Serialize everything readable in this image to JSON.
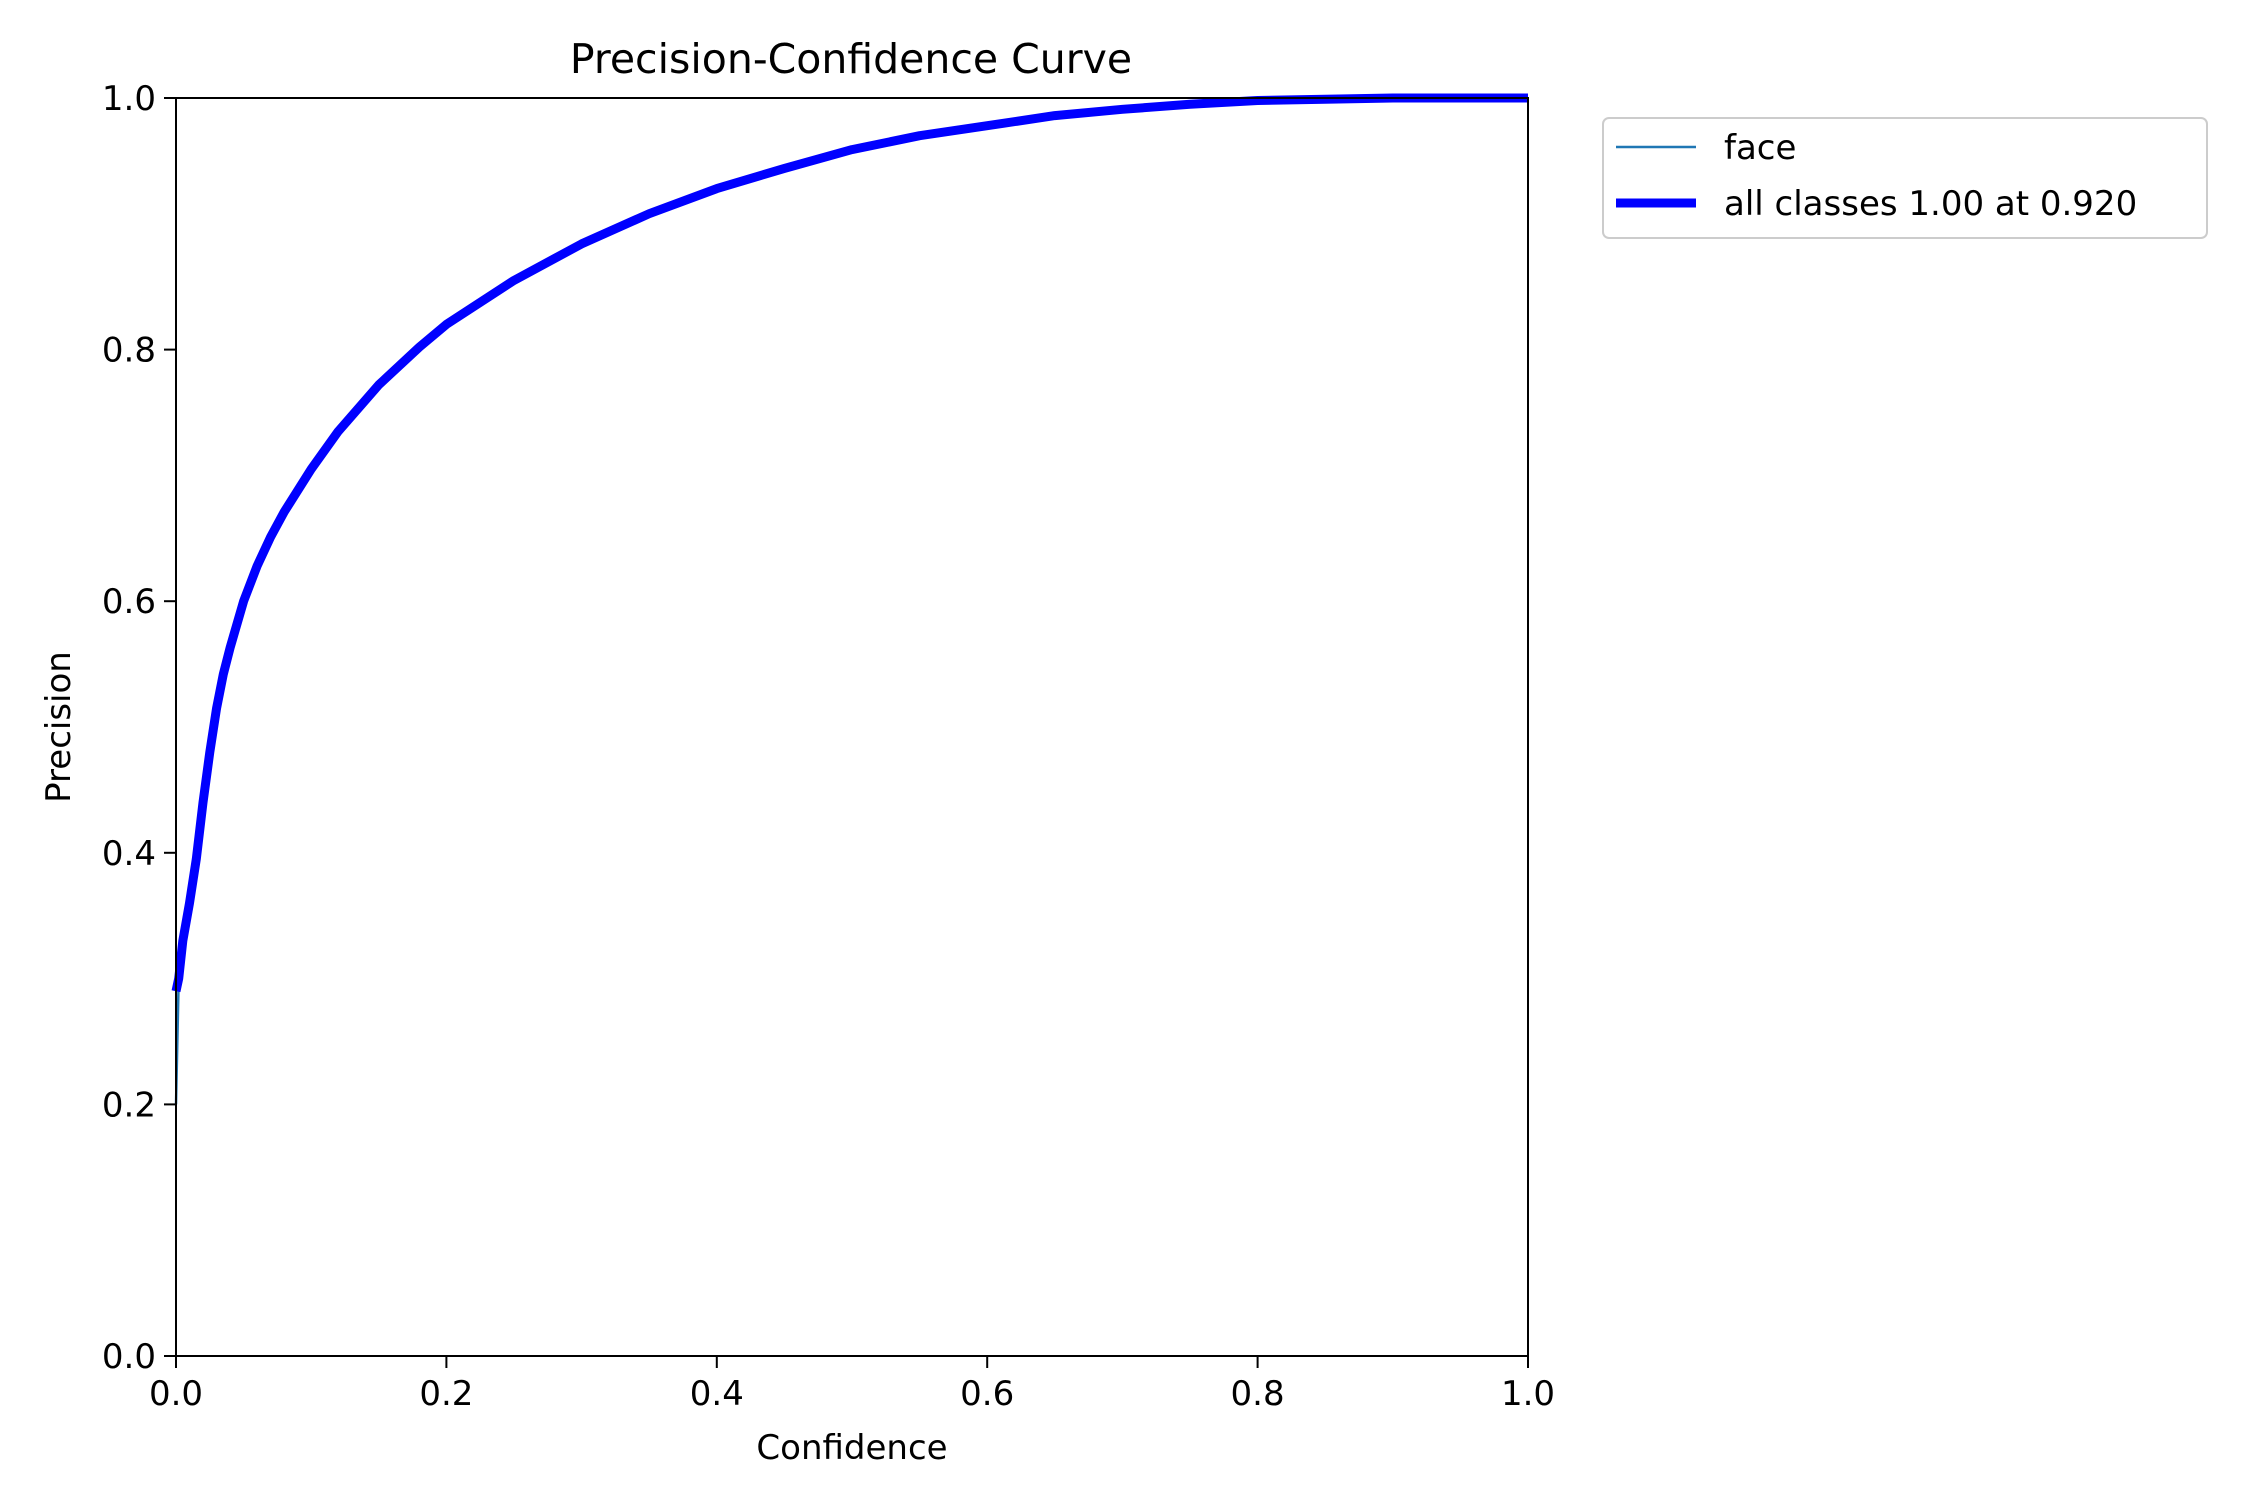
{
  "chart_data": {
    "type": "line",
    "title": "Precision-Confidence Curve",
    "xlabel": "Confidence",
    "ylabel": "Precision",
    "xlim": [
      0,
      1
    ],
    "ylim": [
      0,
      1
    ],
    "xticks": [
      0.0,
      0.2,
      0.4,
      0.6,
      0.8,
      1.0
    ],
    "yticks": [
      0.0,
      0.2,
      0.4,
      0.6,
      0.8,
      1.0
    ],
    "xtick_labels": [
      "0.0",
      "0.2",
      "0.4",
      "0.6",
      "0.8",
      "1.0"
    ],
    "ytick_labels": [
      "0.0",
      "0.2",
      "0.4",
      "0.6",
      "0.8",
      "1.0"
    ],
    "grid": false,
    "legend_position": "outside-top-right",
    "series": [
      {
        "name": "face",
        "color": "#1f77b4",
        "style": "thin",
        "x": [
          0.0,
          0.002,
          0.005,
          0.01,
          0.015,
          0.02,
          0.025,
          0.03,
          0.035,
          0.04,
          0.05,
          0.06,
          0.07,
          0.08,
          0.1,
          0.12,
          0.15,
          0.18,
          0.2,
          0.25,
          0.3,
          0.35,
          0.4,
          0.45,
          0.5,
          0.55,
          0.6,
          0.65,
          0.7,
          0.75,
          0.8,
          0.85,
          0.9,
          0.95,
          1.0
        ],
        "y": [
          0.2,
          0.3,
          0.33,
          0.37,
          0.41,
          0.455,
          0.49,
          0.52,
          0.545,
          0.565,
          0.6,
          0.628,
          0.651,
          0.671,
          0.705,
          0.735,
          0.772,
          0.802,
          0.82,
          0.855,
          0.884,
          0.908,
          0.928,
          0.944,
          0.959,
          0.97,
          0.978,
          0.986,
          0.991,
          0.995,
          0.998,
          0.999,
          1.0,
          1.0,
          1.0
        ]
      },
      {
        "name": "all classes 1.00 at 0.920",
        "color": "#0000ff",
        "style": "thick",
        "x": [
          0.0,
          0.002,
          0.005,
          0.01,
          0.015,
          0.02,
          0.025,
          0.03,
          0.035,
          0.04,
          0.05,
          0.06,
          0.07,
          0.08,
          0.1,
          0.12,
          0.15,
          0.18,
          0.2,
          0.25,
          0.3,
          0.35,
          0.4,
          0.45,
          0.5,
          0.55,
          0.6,
          0.65,
          0.7,
          0.75,
          0.8,
          0.85,
          0.9,
          0.95,
          1.0
        ],
        "y": [
          0.29,
          0.3,
          0.33,
          0.36,
          0.395,
          0.44,
          0.48,
          0.515,
          0.542,
          0.563,
          0.6,
          0.628,
          0.651,
          0.671,
          0.705,
          0.735,
          0.772,
          0.802,
          0.82,
          0.855,
          0.884,
          0.908,
          0.928,
          0.944,
          0.959,
          0.97,
          0.978,
          0.986,
          0.991,
          0.995,
          0.998,
          0.999,
          1.0,
          1.0,
          1.0
        ]
      }
    ]
  }
}
